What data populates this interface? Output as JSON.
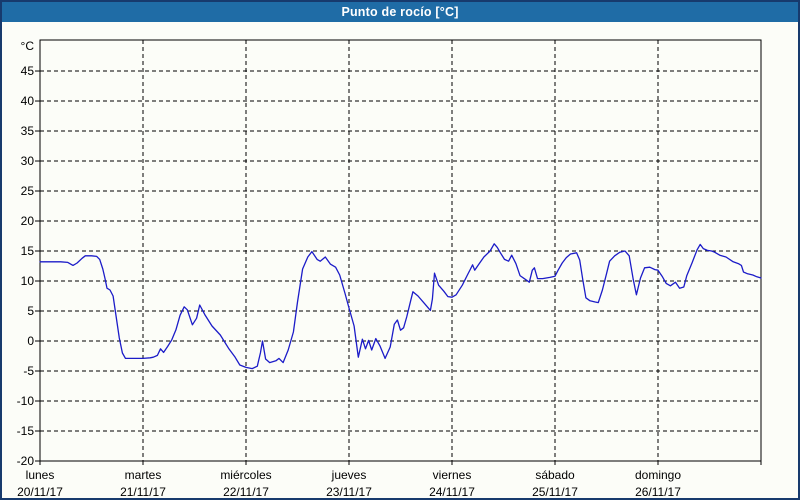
{
  "window": {
    "title": "Punto de rocío [°C]"
  },
  "colors": {
    "frame_border": "#173a6d",
    "titlebar_bg": "#1f6ca6",
    "titlebar_text": "#ffffff",
    "background": "#fcfdf8",
    "line": "#1c1cc8",
    "grid": "#000000",
    "axis_text": "#000000"
  },
  "chart_data": {
    "type": "line",
    "title": "Punto de rocío [°C]",
    "y_unit": "°C",
    "xlabel": "",
    "ylabel": "",
    "grid": true,
    "legend_position": "none",
    "ylim": [
      -20,
      50.17
    ],
    "y_ticks": [
      -20,
      -15,
      -10,
      -5,
      0,
      5,
      10,
      15,
      20,
      25,
      30,
      35,
      40,
      45
    ],
    "x_range_days": [
      0,
      7
    ],
    "x_days": [
      {
        "name": "lunes",
        "date": "20/11/17"
      },
      {
        "name": "martes",
        "date": "21/11/17"
      },
      {
        "name": "miércoles",
        "date": "22/11/17"
      },
      {
        "name": "jueves",
        "date": "23/11/17"
      },
      {
        "name": "viernes",
        "date": "24/11/17"
      },
      {
        "name": "sábado",
        "date": "25/11/17"
      },
      {
        "name": "domingo",
        "date": "26/11/17"
      }
    ],
    "series": [
      {
        "name": "Punto de rocío",
        "color": "#1c1cc8",
        "x": [
          0.0,
          0.1,
          0.2,
          0.27,
          0.32,
          0.36,
          0.41,
          0.44,
          0.5,
          0.55,
          0.58,
          0.61,
          0.63,
          0.65,
          0.68,
          0.71,
          0.74,
          0.77,
          0.8,
          0.83,
          0.92,
          1.0,
          1.07,
          1.1,
          1.14,
          1.17,
          1.2,
          1.24,
          1.28,
          1.32,
          1.36,
          1.4,
          1.43,
          1.48,
          1.52,
          1.55,
          1.6,
          1.67,
          1.75,
          1.83,
          1.89,
          1.94,
          2.0,
          2.06,
          2.11,
          2.14,
          2.16,
          2.19,
          2.23,
          2.29,
          2.32,
          2.36,
          2.41,
          2.46,
          2.5,
          2.55,
          2.6,
          2.64,
          2.69,
          2.72,
          2.77,
          2.82,
          2.87,
          2.91,
          2.96,
          3.0,
          3.05,
          3.09,
          3.13,
          3.16,
          3.19,
          3.22,
          3.26,
          3.3,
          3.35,
          3.4,
          3.44,
          3.47,
          3.5,
          3.53,
          3.56,
          3.6,
          3.62,
          3.67,
          3.73,
          3.79,
          3.81,
          3.83,
          3.87,
          3.92,
          3.96,
          4.0,
          4.04,
          4.1,
          4.15,
          4.18,
          4.2,
          4.22,
          4.26,
          4.31,
          4.37,
          4.41,
          4.44,
          4.47,
          4.51,
          4.55,
          4.58,
          4.62,
          4.66,
          4.71,
          4.75,
          4.78,
          4.8,
          4.83,
          4.88,
          4.95,
          5.0,
          5.03,
          5.07,
          5.11,
          5.15,
          5.21,
          5.24,
          5.27,
          5.3,
          5.34,
          5.39,
          5.42,
          5.46,
          5.5,
          5.53,
          5.58,
          5.63,
          5.68,
          5.72,
          5.76,
          5.79,
          5.83,
          5.87,
          5.92,
          5.97,
          6.0,
          6.04,
          6.08,
          6.12,
          6.17,
          6.21,
          6.25,
          6.28,
          6.33,
          6.38,
          6.41,
          6.44,
          6.48,
          6.52,
          6.55,
          6.6,
          6.66,
          6.73,
          6.78,
          6.81,
          6.83,
          6.87,
          6.92,
          6.96,
          7.0
        ],
        "y": [
          13.2,
          13.2,
          13.2,
          13.1,
          12.6,
          13.0,
          13.8,
          14.2,
          14.2,
          14.1,
          13.6,
          12.0,
          10.5,
          8.8,
          8.5,
          7.5,
          4.0,
          0.5,
          -2.0,
          -2.9,
          -2.9,
          -2.9,
          -2.8,
          -2.7,
          -2.4,
          -1.3,
          -1.9,
          -0.9,
          0.2,
          1.9,
          4.3,
          5.7,
          5.2,
          2.7,
          3.8,
          6.0,
          4.4,
          2.5,
          1.0,
          -1.2,
          -2.6,
          -4.0,
          -4.4,
          -4.6,
          -4.2,
          -2.0,
          0.0,
          -3.0,
          -3.6,
          -3.3,
          -2.9,
          -3.6,
          -1.5,
          1.5,
          6.5,
          12.0,
          14.0,
          14.9,
          13.6,
          13.3,
          14.0,
          12.8,
          12.3,
          11.0,
          8.0,
          5.5,
          2.5,
          -2.7,
          0.3,
          -1.3,
          0.1,
          -1.5,
          0.4,
          -0.8,
          -2.9,
          -1.0,
          2.8,
          3.5,
          1.8,
          2.2,
          4.0,
          6.8,
          8.2,
          7.5,
          6.3,
          5.1,
          7.0,
          11.3,
          9.3,
          8.3,
          7.4,
          7.3,
          7.7,
          9.3,
          11.0,
          12.0,
          12.7,
          11.8,
          12.8,
          14.0,
          15.0,
          16.2,
          15.6,
          14.7,
          13.6,
          13.3,
          14.3,
          12.9,
          10.9,
          10.3,
          9.8,
          11.8,
          12.2,
          10.4,
          10.4,
          10.6,
          10.8,
          11.8,
          13.0,
          13.9,
          14.5,
          14.7,
          13.5,
          10.2,
          7.2,
          6.7,
          6.5,
          6.4,
          8.5,
          11.2,
          13.3,
          14.2,
          14.8,
          15.0,
          14.2,
          10.2,
          7.7,
          10.5,
          12.2,
          12.3,
          11.9,
          11.8,
          10.8,
          9.6,
          9.2,
          9.8,
          8.8,
          9.0,
          10.9,
          13.0,
          15.2,
          16.1,
          15.4,
          15.1,
          15.0,
          14.8,
          14.3,
          14.0,
          13.2,
          12.9,
          12.6,
          11.5,
          11.2,
          11.0,
          10.7,
          10.5
        ]
      }
    ]
  }
}
